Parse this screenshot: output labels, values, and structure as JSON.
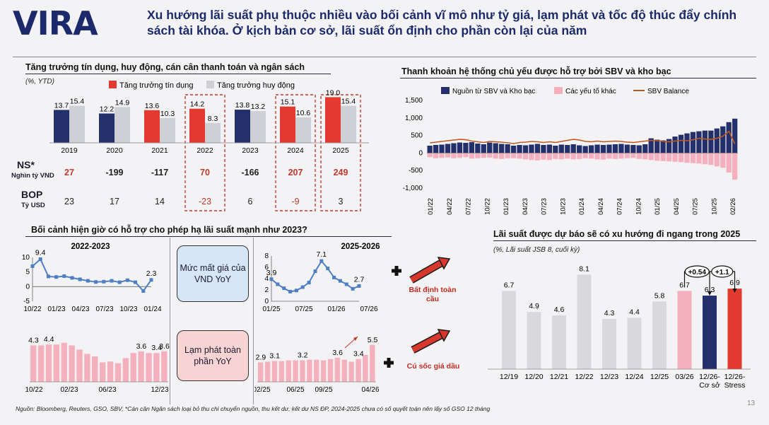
{
  "header": {
    "logo": "VIRA",
    "headline": "Xu hướng lãi suất phụ thuộc nhiều vào bối cảnh vĩ mô như tỷ giá, lạm phát và tốc độ thúc đẩy chính sách tài khóa. Ở kịch bản cơ sở, lãi suất ổn định cho phần còn lại của năm"
  },
  "colors": {
    "navy": "#23306b",
    "red": "#e23a2f",
    "grey": "#cfd0d6",
    "pink": "#f4b1bd",
    "orange": "#c0581f"
  },
  "panel1": {
    "title": "Tăng trưởng tín dụng, huy động, cán cân thanh toán và ngân sách",
    "unit": "(%, YTD)",
    "ns_label": "NS*",
    "ns_sub": "Nghìn tỷ VND",
    "bop_label": "BOP",
    "bop_sub": "Tỷ USD"
  },
  "panel2": {
    "title": "Thanh khoản hệ thống chủ yếu được hỗ trợ bởi SBV và kho bạc"
  },
  "panel3": {
    "title": "Bối cảnh hiện giờ có hỗ trợ cho phép hạ lãi suất mạnh như 2023?",
    "box_fx": "Mức mất giá của VND YoY",
    "box_cpi": "Lạm phát toàn phần YoY"
  },
  "panel4": {
    "title": "Lãi suất được dự báo sẽ có xu hướng đi ngang trong 2025",
    "unit": "(%, Lãi suất JSB 8, cuối kỳ)"
  },
  "footer": {
    "source": "Nguồn: Bloomberg, Reuters, GSO, SBV, *Cán cân Ngân sách loại bỏ thu chi chuyển nguồn, thu kết dư, kết dư NS ĐP, 2024-2025 chưa có số quyết toán nên lấy số GSO 12 tháng",
    "page": "13"
  },
  "chart_data": [
    {
      "type": "bar",
      "legend": [
        "Tăng trưởng tín dụng",
        "Tăng trưởng huy động"
      ],
      "categories": [
        "2019",
        "2020",
        "2021",
        "2022",
        "2023",
        "2024",
        "2025"
      ],
      "series": [
        {
          "name": "Tăng trưởng tín dụng",
          "values": [
            13.7,
            12.2,
            13.6,
            14.2,
            13.8,
            15.1,
            19.0
          ],
          "labels": [
            "13.7",
            "12.2",
            "13.6",
            "14.2",
            "13.8",
            "15.1",
            "19.0"
          ]
        },
        {
          "name": "Tăng trưởng huy động",
          "values": [
            15.4,
            14.9,
            10.3,
            8.3,
            13.2,
            10.6,
            15.4
          ],
          "labels": [
            "15.4",
            "14.9",
            "10.3",
            "8.3",
            "13.2",
            "10.6",
            "15.4"
          ]
        }
      ],
      "credit_highlight": [
        false,
        false,
        true,
        true,
        false,
        true,
        true
      ],
      "ns": [
        "27",
        "-199",
        "-117",
        "70",
        "-166",
        "207",
        "249"
      ],
      "ns_red": [
        true,
        false,
        false,
        true,
        false,
        true,
        true
      ],
      "bop": [
        "23",
        "17",
        "14",
        "-23",
        "6",
        "-9",
        "3"
      ],
      "bop_red": [
        false,
        false,
        false,
        true,
        false,
        true,
        false
      ],
      "dashed_years": [
        "2022",
        "2024",
        "2025"
      ]
    },
    {
      "type": "bar",
      "legend": [
        "Nguồn từ SBV và Kho bạc",
        "Các yếu tố khác",
        "SBV Balance"
      ],
      "ylim": [
        -1000,
        1500
      ],
      "yticks": [
        "1,500",
        "1,000",
        "500",
        "0",
        "-500",
        "-1,000"
      ],
      "xticks": [
        "01/22",
        "04/22",
        "07/22",
        "10/22",
        "01/23",
        "04/23",
        "07/23",
        "10/23",
        "01/24",
        "04/24",
        "07/24",
        "10/24",
        "01/25",
        "04/25",
        "07/25",
        "10/25",
        "02/26"
      ],
      "navy": [
        210,
        230,
        240,
        260,
        280,
        300,
        290,
        310,
        270,
        250,
        300,
        280,
        260,
        250,
        210,
        230,
        220,
        240,
        260,
        230,
        240,
        210,
        240,
        230,
        250,
        220,
        200,
        220,
        240,
        230,
        240,
        250,
        260,
        240,
        230,
        220,
        250,
        420,
        380,
        360,
        400,
        470,
        520,
        560,
        600,
        620,
        640,
        640,
        700,
        760,
        880,
        980
      ],
      "pink": [
        -120,
        -150,
        -140,
        -130,
        -150,
        -140,
        -120,
        -160,
        -150,
        -140,
        -130,
        -160,
        -170,
        -150,
        -150,
        -160,
        -180,
        -200,
        -210,
        -190,
        -200,
        -170,
        -180,
        -160,
        -180,
        -170,
        -150,
        -160,
        -180,
        -190,
        -160,
        -170,
        -160,
        -150,
        -140,
        -170,
        -180,
        -200,
        -220,
        -230,
        -240,
        -250,
        -260,
        -280,
        -290,
        -300,
        -320,
        -340,
        -380,
        -420,
        -560,
        -760
      ],
      "balance": [
        290,
        310,
        330,
        350,
        370,
        390,
        380,
        340,
        320,
        300,
        330,
        320,
        310,
        290,
        270,
        300,
        310,
        330,
        320,
        300,
        320,
        300,
        330,
        360,
        390,
        370,
        330,
        320,
        340,
        320,
        330,
        340,
        330,
        310,
        300,
        320,
        340,
        360,
        350,
        330,
        320,
        340,
        360,
        350,
        380,
        420,
        400,
        390,
        420,
        480,
        620,
        260
      ]
    },
    {
      "type": "line",
      "title": "2022-2023",
      "xticks": [
        "10/22",
        "01/23",
        "04/23",
        "07/23",
        "10/23",
        "01/24"
      ],
      "yticks": [
        "10",
        "5",
        "0",
        "-5"
      ],
      "ylim": [
        -5,
        10
      ],
      "values": [
        7.0,
        9.4,
        3.5,
        3.3,
        3.6,
        3.0,
        2.5,
        2.0,
        1.6,
        1.7,
        2.0,
        1.5,
        2.2,
        1.5,
        -1.5,
        2.3
      ],
      "labels": {
        "1": "9.4",
        "15": "2.3"
      }
    },
    {
      "type": "line",
      "title": "2025-2026",
      "xticks": [
        "01/25",
        "07/25",
        "01/26",
        "07/26"
      ],
      "yticks": [
        "8",
        "6",
        "4",
        "2",
        "0"
      ],
      "ylim": [
        0,
        8
      ],
      "values": [
        3.9,
        3.0,
        2.3,
        1.7,
        1.9,
        2.5,
        3.3,
        5.3,
        7.1,
        5.8,
        4.2,
        3.6,
        3.0,
        2.2,
        2.7
      ],
      "labels": {
        "0": "3.9",
        "8": "7.1",
        "14": "2.7"
      }
    },
    {
      "type": "bar",
      "xticks": [
        "10/22",
        "02/23",
        "06/23",
        "12/23"
      ],
      "values": [
        4.3,
        4.3,
        4.4,
        4.4,
        4.6,
        4.3,
        3.8,
        3.3,
        3.0,
        2.3,
        2.4,
        2.2,
        2.8,
        3.4,
        3.6,
        3.4,
        3.4,
        3.6
      ],
      "labels": {
        "0": "4.3",
        "2": "4.4",
        "14": "3.6",
        "16": "3.4",
        "17": "3.6"
      }
    },
    {
      "type": "bar",
      "xticks": [
        "02/25",
        "06/25",
        "09/25",
        "04/26"
      ],
      "values": [
        2.9,
        3.0,
        3.1,
        3.1,
        3.2,
        3.2,
        3.2,
        3.3,
        3.3,
        3.2,
        3.4,
        3.6,
        3.3,
        3.0,
        3.4,
        4.0,
        5.5
      ],
      "labels": {
        "0": "2.9",
        "2": "3.1",
        "6": "3.2",
        "11": "3.6",
        "14": "3.4",
        "16": "5.5"
      }
    },
    {
      "type": "bar",
      "categories": [
        "12/19",
        "12/20",
        "12/21",
        "12/22",
        "12/23",
        "12/24",
        "12/25",
        "03/26",
        "12/26-\nCơ sở",
        "12/26-\nStress"
      ],
      "values": [
        6.7,
        4.9,
        4.6,
        8.1,
        4.3,
        4.4,
        5.8,
        6.7,
        6.3,
        6.9
      ],
      "labels": [
        "6.7",
        "4.9",
        "4.6",
        "8.1",
        "4.3",
        "4.4",
        "5.8",
        "6.7",
        "6.3",
        "6.9"
      ],
      "annotations": [
        "+0.54",
        "+1.1"
      ]
    }
  ],
  "side_labels": {
    "risk": "Bất định toàn cầu",
    "oil": "Cú sốc giá dầu"
  }
}
